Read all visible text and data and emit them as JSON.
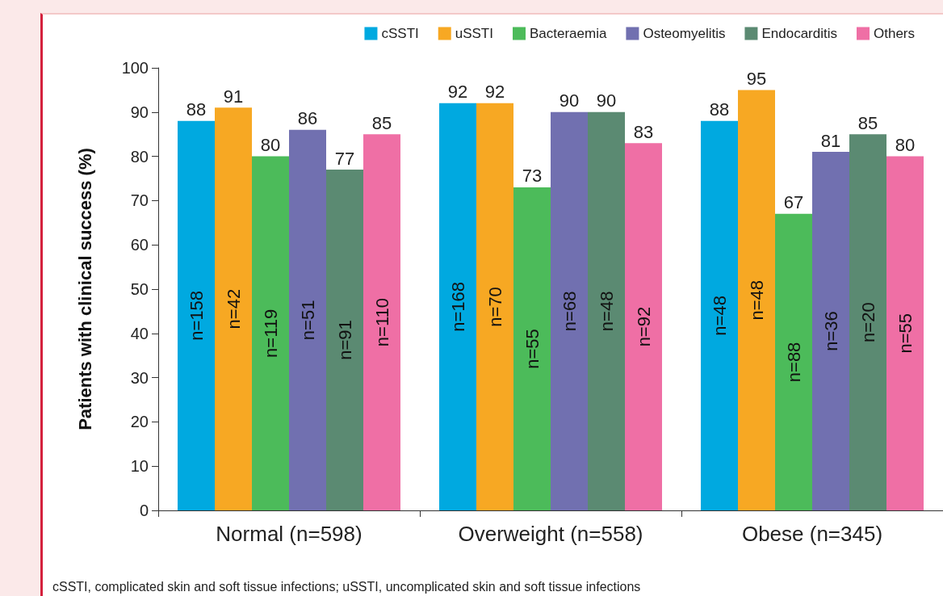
{
  "chart_data": {
    "type": "bar",
    "ylabel": "Patients with clinical success (%)",
    "categories": [
      "Normal (n=598)",
      "Overweight (n=558)",
      "Obese (n=345)"
    ],
    "series": [
      {
        "name": "cSSTI",
        "color": "#00a9e0",
        "values": [
          88,
          92,
          88
        ]
      },
      {
        "name": "uSSTI",
        "color": "#f7a823",
        "values": [
          91,
          92,
          95
        ]
      },
      {
        "name": "Bacteraemia",
        "color": "#4cbb5a",
        "values": [
          80,
          73,
          67
        ]
      },
      {
        "name": "Osteomyelitis",
        "color": "#7170b0",
        "values": [
          86,
          90,
          81
        ]
      },
      {
        "name": "Endocarditis",
        "color": "#5b8a72",
        "values": [
          77,
          90,
          85
        ]
      },
      {
        "name": "Others",
        "color": "#ef6fa5",
        "values": [
          85,
          83,
          80
        ]
      }
    ],
    "ylim": [
      0,
      100
    ],
    "yticks": [
      0,
      10,
      20,
      30,
      40,
      50,
      60,
      70,
      80,
      90,
      100
    ],
    "data_labels": true,
    "grid": false,
    "legend": "top right",
    "annotations": [
      "n=158",
      "n=42",
      "n=119",
      "n=51",
      "n=91",
      "n=110",
      "n=168",
      "n=70",
      "n=55",
      "n=68",
      "n=48",
      "n=92",
      "n=48",
      "n=48",
      "n=88",
      "n=36",
      "n=20",
      "n=55",
      "cSSTI, complicated skin and soft tissue infections; uSSTI, uncomplicated skin and soft tissue infections"
    ]
  }
}
